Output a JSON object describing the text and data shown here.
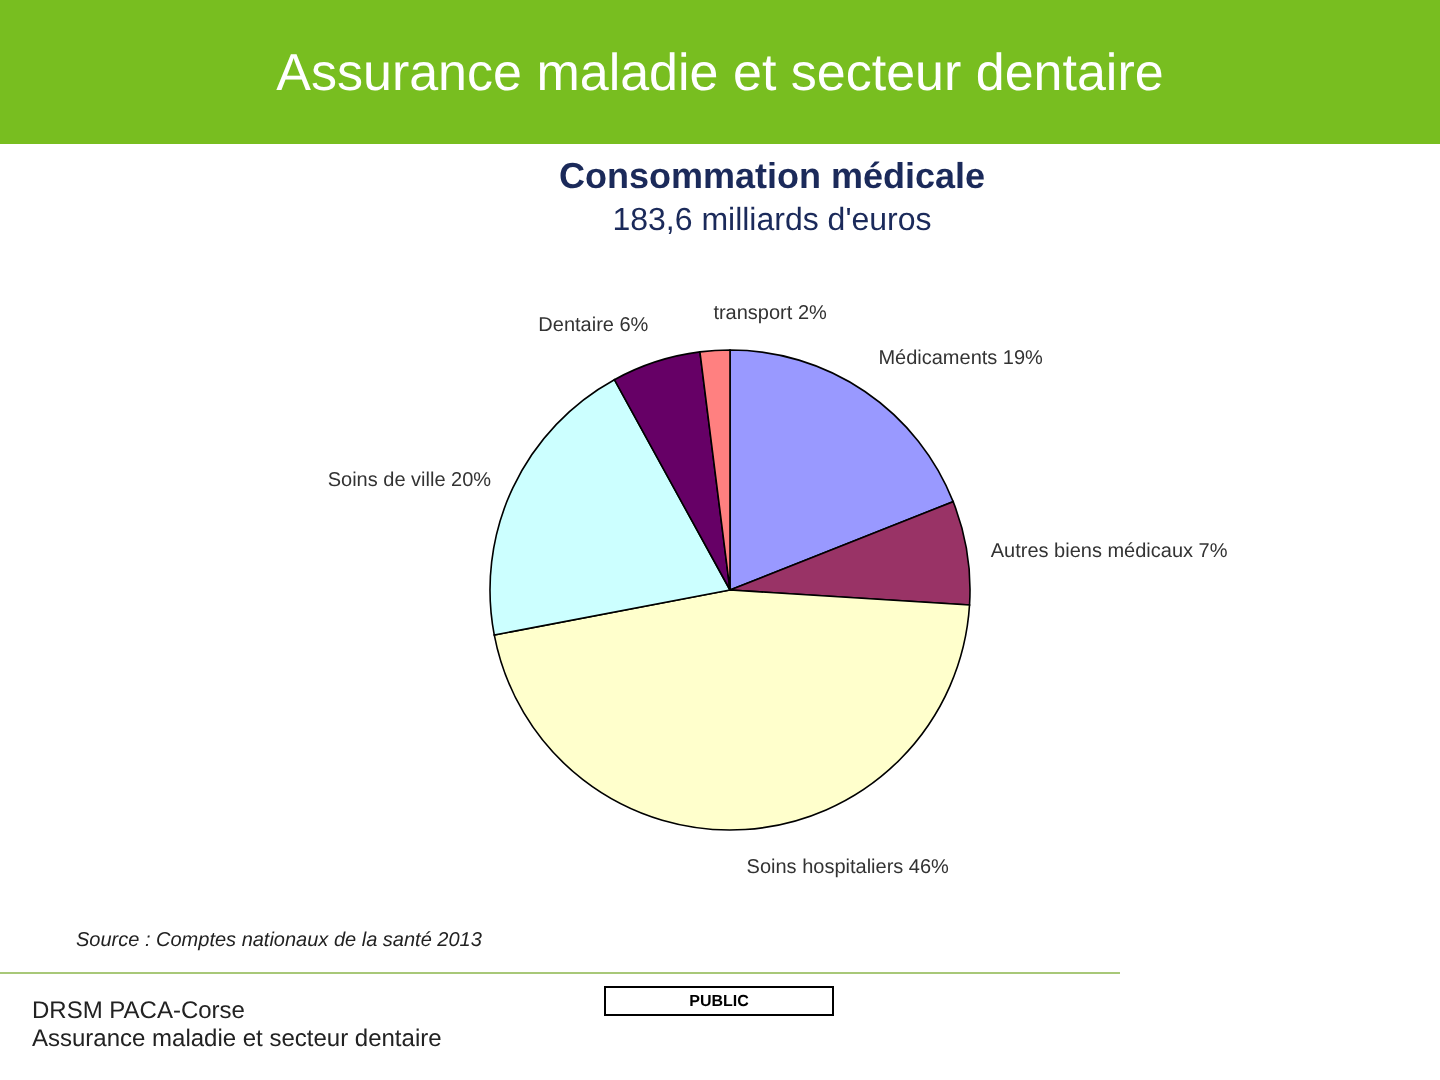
{
  "chart_data": {
    "type": "pie",
    "title": "Consommation médicale",
    "subtitle": "183,6 milliards d'euros",
    "categories": [
      "Médicaments",
      "Autres biens médicaux",
      "Soins hospitaliers",
      "Soins de ville",
      "Dentaire",
      "transport"
    ],
    "values": [
      19,
      7,
      46,
      20,
      6,
      2
    ],
    "value_labels": [
      "19%",
      "7%",
      "46%",
      "20%",
      "6%",
      "2%"
    ],
    "colors": [
      "#9999ff",
      "#993366",
      "#ffffcc",
      "#ccffff",
      "#660066",
      "#ff8080"
    ],
    "annotations": [
      "Assurance maladie et secteur dentaire",
      "Source : Comptes nationaux de la santé 2013",
      "DRSM PACA-Corse",
      "Assurance maladie et secteur dentaire",
      "PUBLIC"
    ]
  }
}
